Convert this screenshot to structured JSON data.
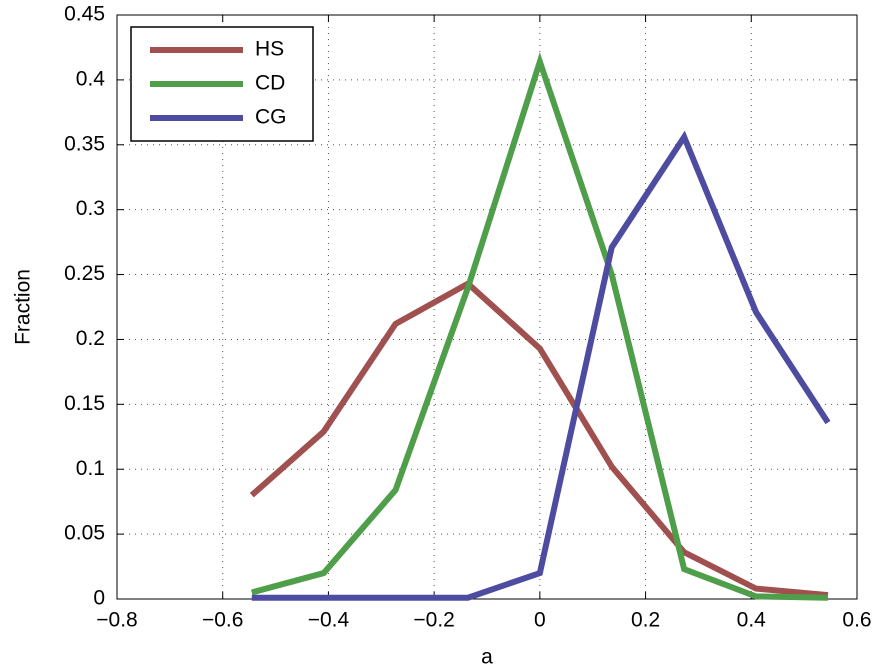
{
  "chart_data": {
    "type": "line",
    "xlabel": "a",
    "ylabel": "Fraction",
    "x": [
      -0.545,
      -0.409,
      -0.273,
      -0.136,
      0,
      0.136,
      0.273,
      0.409,
      0.545
    ],
    "series": [
      {
        "name": "HS",
        "color": "#a0504e",
        "values": [
          0.08,
          0.129,
          0.212,
          0.243,
          0.193,
          0.102,
          0.036,
          0.008,
          0.003
        ]
      },
      {
        "name": "CD",
        "color": "#4e9e4a",
        "values": [
          0.005,
          0.02,
          0.084,
          0.24,
          0.414,
          0.25,
          0.023,
          0.002,
          0.001
        ]
      },
      {
        "name": "CG",
        "color": "#4e4ca0",
        "values": [
          0.001,
          0.001,
          0.001,
          0.001,
          0.02,
          0.271,
          0.356,
          0.221,
          0.136
        ]
      }
    ],
    "xlim": [
      -0.8,
      0.6
    ],
    "xticks": [
      {
        "value": -0.8,
        "label": "−0.8"
      },
      {
        "value": -0.6,
        "label": "−0.6"
      },
      {
        "value": -0.4,
        "label": "−0.4"
      },
      {
        "value": -0.2,
        "label": "−0.2"
      },
      0,
      0.2,
      0.4,
      0.6
    ],
    "ylim": [
      0,
      0.45
    ],
    "yticks": [
      0,
      0.05,
      0.1,
      0.15,
      0.2,
      0.25,
      0.3,
      0.35,
      0.4,
      0.45
    ],
    "grid": true,
    "legend": "upper-left"
  }
}
